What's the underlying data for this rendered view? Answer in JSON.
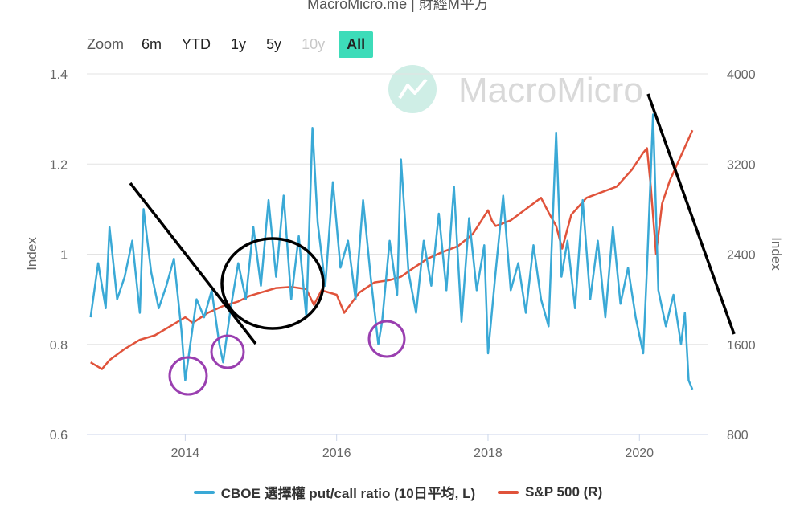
{
  "page": {
    "title": "MacroMicro.me | 財經M平方",
    "watermark": "MacroMicro"
  },
  "zoom": {
    "label": "Zoom",
    "buttons": [
      {
        "label": "6m",
        "state": "normal"
      },
      {
        "label": "YTD",
        "state": "normal"
      },
      {
        "label": "1y",
        "state": "normal"
      },
      {
        "label": "5y",
        "state": "normal"
      },
      {
        "label": "10y",
        "state": "disabled"
      },
      {
        "label": "All",
        "state": "active"
      }
    ]
  },
  "colors": {
    "put_call": "#3aa9d6",
    "sp500": "#e0533b",
    "grid": "#e3e3e3",
    "annotation_line": "#000000",
    "annotation_circle": "#9a3fb0",
    "zoom_active": "#3ddcb9"
  },
  "chart_data": {
    "type": "line",
    "xlabel": "",
    "x_ticks": [
      "2014",
      "2016",
      "2018",
      "2020"
    ],
    "x_tick_years": [
      2014,
      2016,
      2018,
      2020
    ],
    "x_range": [
      2012.7,
      2020.9
    ],
    "y_left": {
      "label": "Index",
      "range": [
        0.6,
        1.4
      ],
      "ticks": [
        "0.6",
        "0.8",
        "1",
        "1.2",
        "1.4"
      ],
      "tick_values": [
        0.6,
        0.8,
        1.0,
        1.2,
        1.4
      ]
    },
    "y_right": {
      "label": "Index",
      "range": [
        800,
        4000
      ],
      "ticks": [
        "800",
        "1600",
        "2400",
        "3200",
        "4000"
      ],
      "tick_values": [
        800,
        1600,
        2400,
        3200,
        4000
      ]
    },
    "grid": true,
    "legend_position": "bottom",
    "series": [
      {
        "name": "CBOE 選擇權 put/call ratio (10日平均, L)",
        "axis": "left",
        "x": [
          2012.75,
          2012.85,
          2012.95,
          2013.0,
          2013.1,
          2013.2,
          2013.3,
          2013.4,
          2013.45,
          2013.55,
          2013.65,
          2013.75,
          2013.85,
          2013.95,
          2014.0,
          2014.05,
          2014.15,
          2014.25,
          2014.35,
          2014.45,
          2014.5,
          2014.6,
          2014.7,
          2014.8,
          2014.9,
          2015.0,
          2015.1,
          2015.2,
          2015.3,
          2015.4,
          2015.5,
          2015.6,
          2015.68,
          2015.75,
          2015.85,
          2015.95,
          2016.05,
          2016.15,
          2016.25,
          2016.35,
          2016.45,
          2016.55,
          2016.6,
          2016.7,
          2016.8,
          2016.85,
          2016.95,
          2017.05,
          2017.15,
          2017.25,
          2017.35,
          2017.45,
          2017.55,
          2017.65,
          2017.75,
          2017.85,
          2017.95,
          2018.0,
          2018.1,
          2018.2,
          2018.3,
          2018.4,
          2018.5,
          2018.6,
          2018.7,
          2018.8,
          2018.9,
          2018.97,
          2019.05,
          2019.15,
          2019.25,
          2019.35,
          2019.45,
          2019.55,
          2019.65,
          2019.75,
          2019.85,
          2019.95,
          2020.05,
          2020.1,
          2020.18,
          2020.25,
          2020.35,
          2020.45,
          2020.55,
          2020.6,
          2020.65,
          2020.7
        ],
        "values": [
          0.86,
          0.98,
          0.88,
          1.06,
          0.9,
          0.95,
          1.03,
          0.87,
          1.1,
          0.96,
          0.88,
          0.93,
          0.99,
          0.83,
          0.72,
          0.78,
          0.9,
          0.86,
          0.92,
          0.8,
          0.76,
          0.88,
          0.98,
          0.9,
          1.06,
          0.93,
          1.12,
          0.95,
          1.13,
          0.9,
          1.04,
          0.86,
          1.28,
          1.07,
          0.93,
          1.16,
          0.97,
          1.03,
          0.9,
          1.12,
          0.95,
          0.8,
          0.85,
          1.03,
          0.91,
          1.21,
          0.96,
          0.87,
          1.03,
          0.93,
          1.09,
          0.92,
          1.15,
          0.85,
          1.08,
          0.92,
          1.02,
          0.78,
          0.96,
          1.13,
          0.92,
          0.98,
          0.87,
          1.02,
          0.9,
          0.84,
          1.27,
          0.95,
          1.03,
          0.88,
          1.12,
          0.9,
          1.03,
          0.86,
          1.06,
          0.89,
          0.97,
          0.86,
          0.78,
          0.97,
          1.31,
          0.92,
          0.84,
          0.91,
          0.8,
          0.87,
          0.72,
          0.7
        ]
      },
      {
        "name": "S&P 500 (R)",
        "axis": "right",
        "x": [
          2012.75,
          2012.9,
          2013.0,
          2013.2,
          2013.4,
          2013.6,
          2013.8,
          2014.0,
          2014.1,
          2014.3,
          2014.5,
          2014.7,
          2014.85,
          2015.0,
          2015.2,
          2015.4,
          2015.6,
          2015.7,
          2015.8,
          2016.0,
          2016.1,
          2016.3,
          2016.5,
          2016.7,
          2016.85,
          2017.0,
          2017.2,
          2017.4,
          2017.6,
          2017.8,
          2018.0,
          2018.05,
          2018.1,
          2018.3,
          2018.5,
          2018.7,
          2018.8,
          2018.9,
          2018.98,
          2019.1,
          2019.3,
          2019.5,
          2019.7,
          2019.9,
          2020.05,
          2020.1,
          2020.15,
          2020.22,
          2020.3,
          2020.4,
          2020.5,
          2020.6,
          2020.7
        ],
        "values": [
          1440,
          1380,
          1460,
          1560,
          1640,
          1680,
          1760,
          1840,
          1790,
          1880,
          1940,
          1980,
          2030,
          2060,
          2100,
          2110,
          2090,
          1950,
          2080,
          2040,
          1880,
          2060,
          2150,
          2170,
          2200,
          2270,
          2360,
          2420,
          2470,
          2580,
          2790,
          2700,
          2650,
          2700,
          2800,
          2900,
          2770,
          2650,
          2450,
          2750,
          2900,
          2950,
          3000,
          3150,
          3300,
          3340,
          3000,
          2400,
          2850,
          3050,
          3200,
          3350,
          3500
        ]
      }
    ]
  }
}
